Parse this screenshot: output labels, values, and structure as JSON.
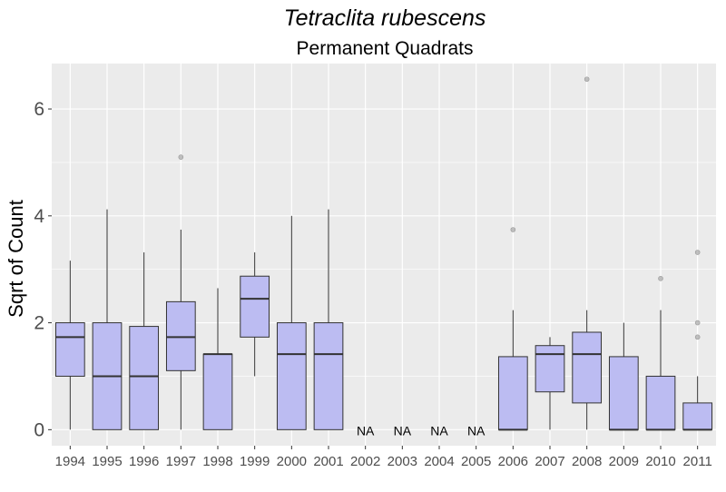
{
  "chart_data": {
    "type": "box",
    "title": "Tetraclita rubescens",
    "subtitle": "Permanent Quadrats",
    "xlabel": "",
    "ylabel": "Sqrt of Count",
    "ylim": [
      -0.3,
      6.85
    ],
    "yticks": [
      0,
      2,
      4,
      6
    ],
    "grid": true,
    "na_label": "NA",
    "box_fill": "#bcbcf2",
    "panel_background": "#ebebeb",
    "categories": [
      "1994",
      "1995",
      "1996",
      "1997",
      "1998",
      "1999",
      "2000",
      "2001",
      "2002",
      "2003",
      "2004",
      "2005",
      "2006",
      "2007",
      "2008",
      "2009",
      "2010",
      "2011"
    ],
    "boxes": [
      {
        "year": "1994",
        "min": 0,
        "q1": 1.0,
        "median": 1.732,
        "q3": 2.0,
        "max": 3.162,
        "outliers": []
      },
      {
        "year": "1995",
        "min": 0,
        "q1": 0,
        "median": 1.0,
        "q3": 2.0,
        "max": 4.123,
        "outliers": []
      },
      {
        "year": "1996",
        "min": 0,
        "q1": 0,
        "median": 1.0,
        "q3": 1.932,
        "max": 3.317,
        "outliers": []
      },
      {
        "year": "1997",
        "min": 0,
        "q1": 1.104,
        "median": 1.732,
        "q3": 2.394,
        "max": 3.742,
        "outliers": [
          5.099
        ]
      },
      {
        "year": "1998",
        "min": 0,
        "q1": 0,
        "median": 1.414,
        "q3": 1.414,
        "max": 2.646,
        "outliers": []
      },
      {
        "year": "1999",
        "min": 1.0,
        "q1": 1.732,
        "median": 2.449,
        "q3": 2.872,
        "max": 3.317,
        "outliers": []
      },
      {
        "year": "2000",
        "min": 0,
        "q1": 0,
        "median": 1.414,
        "q3": 2.0,
        "max": 4.0,
        "outliers": []
      },
      {
        "year": "2001",
        "min": 0,
        "q1": 0,
        "median": 1.414,
        "q3": 2.0,
        "max": 4.123,
        "outliers": []
      },
      {
        "year": "2002",
        "na": true
      },
      {
        "year": "2003",
        "na": true
      },
      {
        "year": "2004",
        "na": true
      },
      {
        "year": "2005",
        "na": true
      },
      {
        "year": "2006",
        "min": 0,
        "q1": 0,
        "median": 0,
        "q3": 1.366,
        "max": 2.236,
        "outliers": [
          3.742
        ]
      },
      {
        "year": "2007",
        "min": 0,
        "q1": 0.707,
        "median": 1.414,
        "q3": 1.573,
        "max": 1.732,
        "outliers": []
      },
      {
        "year": "2008",
        "min": 0,
        "q1": 0.5,
        "median": 1.414,
        "q3": 1.823,
        "max": 2.236,
        "outliers": [
          6.557
        ]
      },
      {
        "year": "2009",
        "min": 0,
        "q1": 0,
        "median": 0,
        "q3": 1.366,
        "max": 2.0,
        "outliers": []
      },
      {
        "year": "2010",
        "min": 0,
        "q1": 0,
        "median": 0,
        "q3": 1.0,
        "max": 2.236,
        "outliers": [
          2.828
        ]
      },
      {
        "year": "2011",
        "min": 0,
        "q1": 0,
        "median": 0,
        "q3": 0.5,
        "max": 1.0,
        "outliers": [
          1.732,
          2.0,
          3.317
        ]
      }
    ]
  }
}
